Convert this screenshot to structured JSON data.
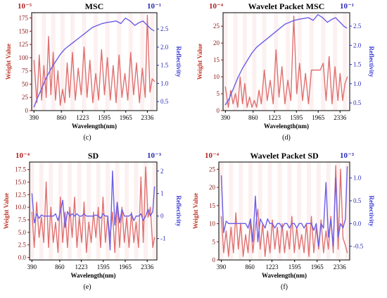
{
  "colors": {
    "weight": "#e07070",
    "reflectivity": "#6b5ee8",
    "axis_left": "#8b1a1a",
    "axis_right": "#2a2ab8",
    "band_fill": "#fbe3e3"
  },
  "chart_data": [
    {
      "panel": "(c)",
      "type": "line",
      "title": "MSC",
      "xlabel": "Wavelength(nm)",
      "ylabel": "Weight Value",
      "ylabel_right": "Reflectivity",
      "exp_left": "10⁻⁵",
      "exp_right": "10⁻¹",
      "xlim": [
        350,
        2500
      ],
      "ylim": [
        0,
        185
      ],
      "ylim_right": [
        0.25,
        2.95
      ],
      "xticks": [
        "390",
        "860",
        "1223",
        "1595",
        "1965",
        "2336"
      ],
      "yticks": [
        "0",
        "25",
        "50",
        "75",
        "100",
        "125",
        "150",
        "175"
      ],
      "yticks_right": [
        "0.5",
        "1.0",
        "1.5",
        "2.0",
        "2.5"
      ],
      "series": [
        {
          "name": "",
          "axis": "left",
          "x": [
            390,
            440,
            480,
            520,
            560,
            600,
            640,
            680,
            720,
            760,
            800,
            840,
            880,
            920,
            960,
            1000,
            1050,
            1100,
            1150,
            1200,
            1250,
            1300,
            1350,
            1400,
            1450,
            1500,
            1550,
            1600,
            1650,
            1700,
            1750,
            1800,
            1850,
            1900,
            1950,
            2000,
            2050,
            2100,
            2150,
            2200,
            2250,
            2300,
            2336,
            2380,
            2420,
            2460
          ],
          "values": [
            95,
            15,
            105,
            20,
            85,
            25,
            140,
            30,
            110,
            20,
            75,
            10,
            40,
            15,
            90,
            25,
            110,
            20,
            80,
            30,
            120,
            25,
            95,
            15,
            70,
            20,
            115,
            30,
            100,
            20,
            85,
            15,
            105,
            25,
            70,
            20,
            110,
            30,
            90,
            15,
            80,
            25,
            180,
            35,
            60,
            55
          ]
        },
        {
          "name": "",
          "axis": "right",
          "x": [
            390,
            450,
            520,
            600,
            680,
            760,
            840,
            920,
            1000,
            1080,
            1160,
            1240,
            1320,
            1400,
            1480,
            1560,
            1640,
            1720,
            1800,
            1880,
            1960,
            2040,
            2120,
            2200,
            2260,
            2336,
            2400,
            2450
          ],
          "values": [
            0.35,
            0.6,
            0.85,
            1.15,
            1.4,
            1.6,
            1.8,
            1.95,
            2.05,
            2.15,
            2.25,
            2.35,
            2.45,
            2.55,
            2.6,
            2.65,
            2.68,
            2.7,
            2.72,
            2.65,
            2.8,
            2.72,
            2.6,
            2.68,
            2.72,
            2.6,
            2.5,
            2.45
          ]
        }
      ]
    },
    {
      "panel": "(d)",
      "type": "line",
      "title": "Wavelet Packet MSC",
      "xlabel": "Wavelength(nm)",
      "ylabel": "Weight Value",
      "ylabel_right": "Reflectivity",
      "exp_left": "10⁻⁴",
      "exp_right": "10⁻¹",
      "xlim": [
        350,
        2500
      ],
      "ylim": [
        0,
        29
      ],
      "ylim_right": [
        0.3,
        2.85
      ],
      "xticks": [
        "390",
        "860",
        "1223",
        "1595",
        "1965",
        "2336"
      ],
      "yticks": [
        "0",
        "5",
        "10",
        "15",
        "20",
        "25"
      ],
      "yticks_right": [
        "0.5",
        "1.0",
        "1.5",
        "2.0",
        "2.5"
      ],
      "series": [
        {
          "name": "",
          "axis": "left",
          "x": [
            390,
            440,
            480,
            520,
            560,
            600,
            640,
            680,
            720,
            760,
            800,
            840,
            880,
            920,
            960,
            1000,
            1050,
            1100,
            1150,
            1200,
            1250,
            1300,
            1350,
            1400,
            1450,
            1500,
            1550,
            1600,
            1650,
            1700,
            1750,
            1800,
            1850,
            1900,
            1950,
            2000,
            2050,
            2100,
            2150,
            2200,
            2250,
            2300,
            2336,
            2380,
            2420,
            2460
          ],
          "values": [
            7,
            1,
            6,
            2,
            5,
            1,
            10,
            2,
            8,
            1,
            4,
            1,
            3,
            1,
            6,
            2,
            12,
            3,
            9,
            2,
            18,
            4,
            13,
            2,
            9,
            3,
            28,
            5,
            14,
            3,
            11,
            2,
            12,
            12,
            12,
            12,
            14,
            3,
            16,
            2,
            13,
            3,
            11,
            3,
            8,
            10
          ]
        },
        {
          "name": "",
          "axis": "right",
          "x": [
            390,
            450,
            520,
            600,
            680,
            760,
            840,
            920,
            1000,
            1080,
            1160,
            1240,
            1320,
            1400,
            1480,
            1560,
            1640,
            1720,
            1800,
            1880,
            1960,
            2040,
            2120,
            2200,
            2260,
            2336,
            2400,
            2450
          ],
          "values": [
            0.45,
            0.6,
            0.85,
            1.15,
            1.4,
            1.6,
            1.8,
            1.95,
            2.05,
            2.15,
            2.25,
            2.35,
            2.45,
            2.55,
            2.6,
            2.65,
            2.68,
            2.7,
            2.72,
            2.65,
            2.8,
            2.72,
            2.6,
            2.68,
            2.72,
            2.6,
            2.5,
            2.45
          ]
        }
      ]
    },
    {
      "panel": "(e)",
      "type": "line",
      "title": "SD",
      "xlabel": "Wavelength(nm)",
      "ylabel": "Weight Value",
      "ylabel_right": "Reflectivity",
      "exp_left": "10⁻⁴",
      "exp_right": "10⁻³",
      "xlim": [
        350,
        2500
      ],
      "ylim": [
        -0.5,
        19
      ],
      "ylim_right": [
        -1.95,
        2.4
      ],
      "xticks": [
        "390",
        "860",
        "1223",
        "1595",
        "1965",
        "2336"
      ],
      "yticks": [
        "0.0",
        "2.5",
        "5.0",
        "7.5",
        "10.0",
        "12.5",
        "15.0",
        "17.5"
      ],
      "yticks_right": [
        "-1",
        "0",
        "1",
        "2"
      ],
      "series": [
        {
          "name": "",
          "axis": "left",
          "x": [
            390,
            430,
            470,
            510,
            550,
            590,
            630,
            670,
            710,
            750,
            790,
            830,
            870,
            910,
            950,
            990,
            1030,
            1070,
            1110,
            1150,
            1190,
            1230,
            1270,
            1310,
            1350,
            1390,
            1430,
            1470,
            1510,
            1550,
            1590,
            1630,
            1670,
            1710,
            1750,
            1790,
            1830,
            1870,
            1910,
            1950,
            1990,
            2030,
            2070,
            2110,
            2150,
            2190,
            2230,
            2270,
            2310,
            2350,
            2390,
            2430,
            2460
          ],
          "values": [
            9,
            2,
            11,
            4,
            8,
            3,
            15,
            2,
            10,
            3,
            7,
            1,
            12,
            3,
            9,
            2,
            10,
            4,
            12,
            2,
            8,
            3,
            11,
            1,
            7,
            3,
            9,
            4,
            10,
            2,
            12,
            3,
            8,
            4,
            9,
            1,
            11,
            2,
            10,
            3,
            8,
            2,
            9,
            3,
            7,
            2,
            16,
            3,
            18,
            8,
            10,
            2,
            4
          ]
        },
        {
          "name": "",
          "axis": "right",
          "x": [
            390,
            430,
            470,
            510,
            550,
            590,
            630,
            670,
            710,
            750,
            790,
            830,
            870,
            910,
            950,
            990,
            1030,
            1070,
            1110,
            1150,
            1190,
            1230,
            1270,
            1310,
            1350,
            1390,
            1430,
            1470,
            1510,
            1550,
            1590,
            1630,
            1670,
            1710,
            1750,
            1790,
            1830,
            1870,
            1910,
            1950,
            1990,
            2030,
            2070,
            2110,
            2150,
            2190,
            2230,
            2270,
            2310,
            2350,
            2390,
            2430,
            2460
          ],
          "values": [
            1.0,
            -0.3,
            0.1,
            -0.1,
            0.05,
            0.0,
            0.0,
            0.0,
            0.0,
            0.0,
            0.1,
            -0.2,
            0.2,
            0.7,
            -0.5,
            0.2,
            0.0,
            0.1,
            0.0,
            0.1,
            0.0,
            0.0,
            0.1,
            0.0,
            0.0,
            0.0,
            0.0,
            0.05,
            0.0,
            -0.1,
            0.1,
            0.0,
            0.0,
            -1.5,
            2.0,
            -0.4,
            0.6,
            -0.3,
            0.3,
            0.0,
            0.0,
            0.0,
            0.1,
            -0.2,
            0.0,
            0.0,
            0.1,
            -0.2,
            0.0,
            0.3,
            0.0,
            0.2,
            1.3
          ]
        }
      ]
    },
    {
      "panel": "(f)",
      "type": "line",
      "title": "Wavelet Packet SD",
      "xlabel": "Wavelength(nm)",
      "ylabel": "Weight Value",
      "ylabel_right": "Reflectivity",
      "exp_left": "10⁻⁴",
      "exp_right": "10⁻³",
      "xlim": [
        350,
        2500
      ],
      "ylim": [
        0,
        27
      ],
      "ylim_right": [
        -0.8,
        1.35
      ],
      "xticks": [
        "390",
        "860",
        "1223",
        "1595",
        "1965",
        "2336"
      ],
      "yticks": [
        "0",
        "5",
        "10",
        "15",
        "20",
        "25"
      ],
      "yticks_right": [
        "-0.5",
        "0.0",
        "0.5",
        "1.0"
      ],
      "series": [
        {
          "name": "",
          "axis": "left",
          "x": [
            390,
            430,
            470,
            510,
            550,
            590,
            630,
            670,
            710,
            750,
            790,
            830,
            870,
            910,
            950,
            990,
            1030,
            1070,
            1110,
            1150,
            1190,
            1230,
            1270,
            1310,
            1350,
            1390,
            1430,
            1470,
            1510,
            1550,
            1590,
            1630,
            1670,
            1710,
            1750,
            1790,
            1830,
            1870,
            1910,
            1950,
            1990,
            2030,
            2070,
            2110,
            2150,
            2190,
            2230,
            2270,
            2310,
            2350,
            2390,
            2430,
            2460
          ],
          "values": [
            12,
            2,
            8,
            1,
            9,
            2,
            13,
            3,
            10,
            1,
            7,
            2,
            11,
            2,
            9,
            14,
            3,
            10,
            1,
            8,
            2,
            11,
            3,
            9,
            2,
            10,
            2,
            8,
            3,
            12,
            2,
            9,
            3,
            7,
            2,
            10,
            1,
            12,
            2,
            9,
            3,
            11,
            2,
            8,
            3,
            12,
            2,
            26,
            3,
            25,
            6,
            4,
            2
          ]
        },
        {
          "name": "",
          "axis": "right",
          "x": [
            390,
            430,
            470,
            510,
            550,
            590,
            630,
            670,
            710,
            750,
            790,
            830,
            870,
            910,
            950,
            990,
            1030,
            1070,
            1110,
            1150,
            1190,
            1230,
            1270,
            1310,
            1350,
            1390,
            1430,
            1470,
            1510,
            1550,
            1590,
            1630,
            1670,
            1710,
            1750,
            1790,
            1830,
            1870,
            1910,
            1950,
            1990,
            2030,
            2070,
            2110,
            2150,
            2190,
            2230,
            2270,
            2310,
            2350,
            2390,
            2430,
            2460
          ],
          "values": [
            1.05,
            -0.2,
            0.05,
            0.0,
            0.0,
            0.0,
            0.0,
            0.0,
            0.0,
            0.0,
            0.0,
            -0.1,
            0.1,
            -0.4,
            0.6,
            -0.4,
            0.1,
            0.0,
            -0.1,
            0.1,
            0.0,
            0.0,
            -0.1,
            0.0,
            0.0,
            -0.1,
            0.0,
            0.0,
            -0.1,
            0.0,
            0.0,
            -0.1,
            0.0,
            0.0,
            -0.1,
            0.0,
            0.0,
            0.0,
            -0.15,
            0.0,
            -0.5,
            0.0,
            -0.1,
            0.9,
            -0.3,
            0.1,
            -0.5,
            1.0,
            -0.3,
            0.0,
            -0.1,
            0.1,
            1.25
          ]
        }
      ]
    }
  ]
}
